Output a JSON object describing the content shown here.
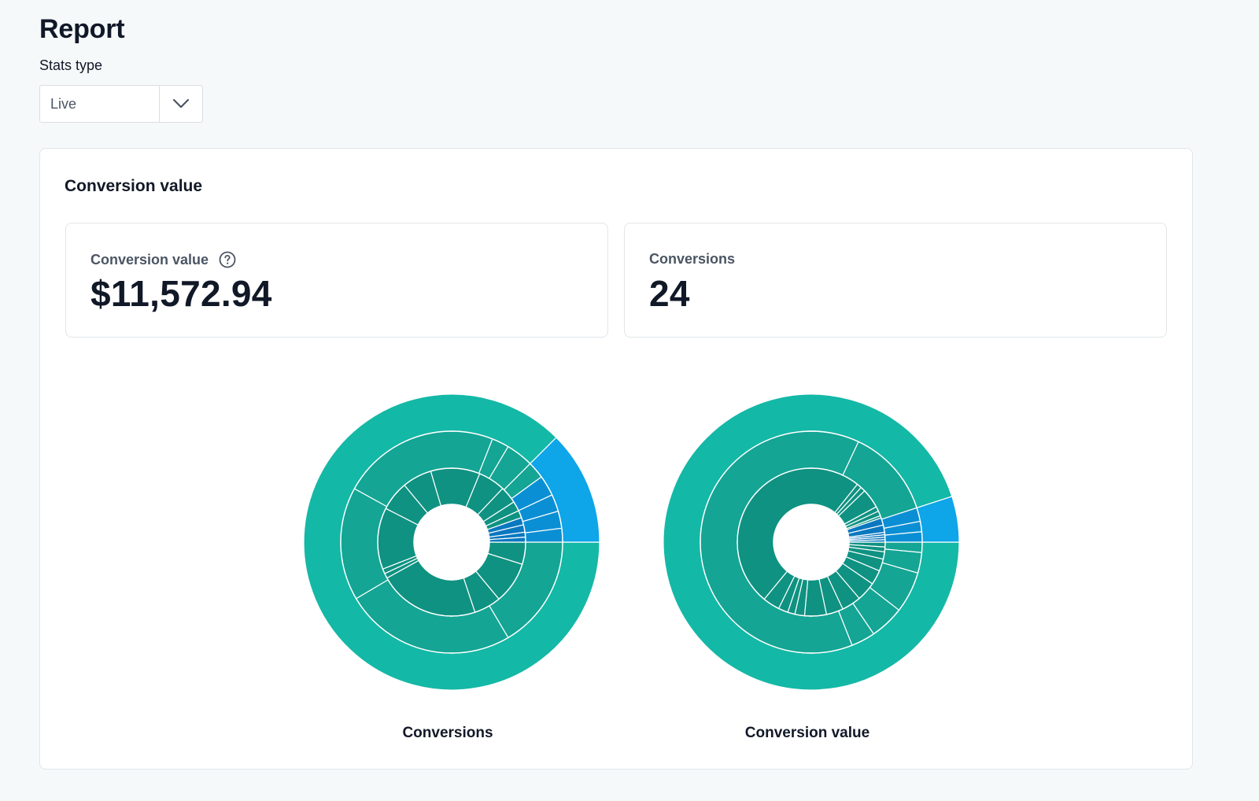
{
  "page": {
    "title": "Report"
  },
  "filters": {
    "stats_type_label": "Stats type",
    "stats_type_value": "Live"
  },
  "panel": {
    "title": "Conversion value",
    "metrics": [
      {
        "label": "Conversion value",
        "value": "$11,572.94",
        "help_icon": "question-circle-icon"
      },
      {
        "label": "Conversions",
        "value": "24"
      }
    ]
  },
  "colors": {
    "ring1": "#14b8a6",
    "ring2": "#14a594",
    "ring3": "#0f9282",
    "blue1": "#0ea5e9",
    "blue2": "#0b8fd4",
    "blue3": "#0a78bf",
    "separator": "#ffffff"
  },
  "chart_data": [
    {
      "type": "sunburst",
      "title": "Conversions",
      "rings": [
        {
          "level": 1,
          "segments": [
            {
              "value": 0.875,
              "color": "ring1"
            },
            {
              "value": 0.125,
              "color": "blue1"
            }
          ]
        },
        {
          "level": 2,
          "segments": [
            {
              "value": 0.165,
              "color": "ring2"
            },
            {
              "value": 0.25,
              "color": "ring2"
            },
            {
              "value": 0.165,
              "color": "ring2"
            },
            {
              "value": 0.23,
              "color": "ring2"
            },
            {
              "value": 0.025,
              "color": "ring2"
            },
            {
              "value": 0.04,
              "color": "ring2"
            },
            {
              "value": 0.025,
              "color": "ring2"
            },
            {
              "value": 0.03,
              "color": "blue2"
            },
            {
              "value": 0.025,
              "color": "blue2"
            },
            {
              "value": 0.025,
              "color": "blue2"
            },
            {
              "value": 0.02,
              "color": "blue2"
            }
          ]
        },
        {
          "level": 3,
          "segments": [
            {
              "value": 0.045,
              "color": "ring3"
            },
            {
              "value": 0.085,
              "color": "ring3"
            },
            {
              "value": 0.055,
              "color": "ring3"
            },
            {
              "value": 0.205,
              "color": "ring3"
            },
            {
              "value": 0.01,
              "color": "ring3"
            },
            {
              "value": 0.01,
              "color": "ring3"
            },
            {
              "value": 0.125,
              "color": "ring3"
            },
            {
              "value": 0.06,
              "color": "ring3"
            },
            {
              "value": 0.06,
              "color": "ring3"
            },
            {
              "value": 0.1,
              "color": "ring3"
            },
            {
              "value": 0.055,
              "color": "ring3"
            },
            {
              "value": 0.035,
              "color": "ring3"
            },
            {
              "value": 0.02,
              "color": "ring3"
            },
            {
              "value": 0.015,
              "color": "ring3"
            },
            {
              "value": 0.015,
              "color": "blue3"
            },
            {
              "value": 0.015,
              "color": "blue3"
            },
            {
              "value": 0.01,
              "color": "blue3"
            },
            {
              "value": 0.01,
              "color": "blue3"
            }
          ]
        }
      ]
    },
    {
      "type": "sunburst",
      "title": "Conversion value",
      "rings": [
        {
          "level": 1,
          "segments": [
            {
              "value": 0.95,
              "color": "ring1"
            },
            {
              "value": 0.05,
              "color": "blue1"
            }
          ]
        },
        {
          "level": 2,
          "segments": [
            {
              "value": 0.015,
              "color": "ring2"
            },
            {
              "value": 0.03,
              "color": "ring2"
            },
            {
              "value": 0.06,
              "color": "ring2"
            },
            {
              "value": 0.05,
              "color": "ring2"
            },
            {
              "value": 0.035,
              "color": "ring2"
            },
            {
              "value": 0.63,
              "color": "ring2"
            },
            {
              "value": 0.13,
              "color": "ring2"
            },
            {
              "value": 0.02,
              "color": "blue2"
            },
            {
              "value": 0.015,
              "color": "blue2"
            },
            {
              "value": 0.015,
              "color": "blue2"
            }
          ]
        },
        {
          "level": 3,
          "segments": [
            {
              "value": 0.01,
              "color": "ring3"
            },
            {
              "value": 0.01,
              "color": "ring3"
            },
            {
              "value": 0.015,
              "color": "ring3"
            },
            {
              "value": 0.025,
              "color": "ring3"
            },
            {
              "value": 0.03,
              "color": "ring3"
            },
            {
              "value": 0.04,
              "color": "ring3"
            },
            {
              "value": 0.04,
              "color": "ring3"
            },
            {
              "value": 0.035,
              "color": "ring3"
            },
            {
              "value": 0.045,
              "color": "ring3"
            },
            {
              "value": 0.02,
              "color": "ring3"
            },
            {
              "value": 0.015,
              "color": "ring3"
            },
            {
              "value": 0.02,
              "color": "ring3"
            },
            {
              "value": 0.035,
              "color": "ring3"
            },
            {
              "value": 0.47,
              "color": "ring3"
            },
            {
              "value": 0.01,
              "color": "ring3"
            },
            {
              "value": 0.01,
              "color": "ring3"
            },
            {
              "value": 0.04,
              "color": "ring3"
            },
            {
              "value": 0.01,
              "color": "ring3"
            },
            {
              "value": 0.01,
              "color": "ring3"
            },
            {
              "value": 0.005,
              "color": "ring3"
            },
            {
              "value": 0.015,
              "color": "blue3"
            },
            {
              "value": 0.015,
              "color": "blue3"
            },
            {
              "value": 0.005,
              "color": "blue3"
            },
            {
              "value": 0.005,
              "color": "blue3"
            },
            {
              "value": 0.005,
              "color": "blue3"
            },
            {
              "value": 0.005,
              "color": "blue3"
            }
          ]
        }
      ]
    }
  ]
}
